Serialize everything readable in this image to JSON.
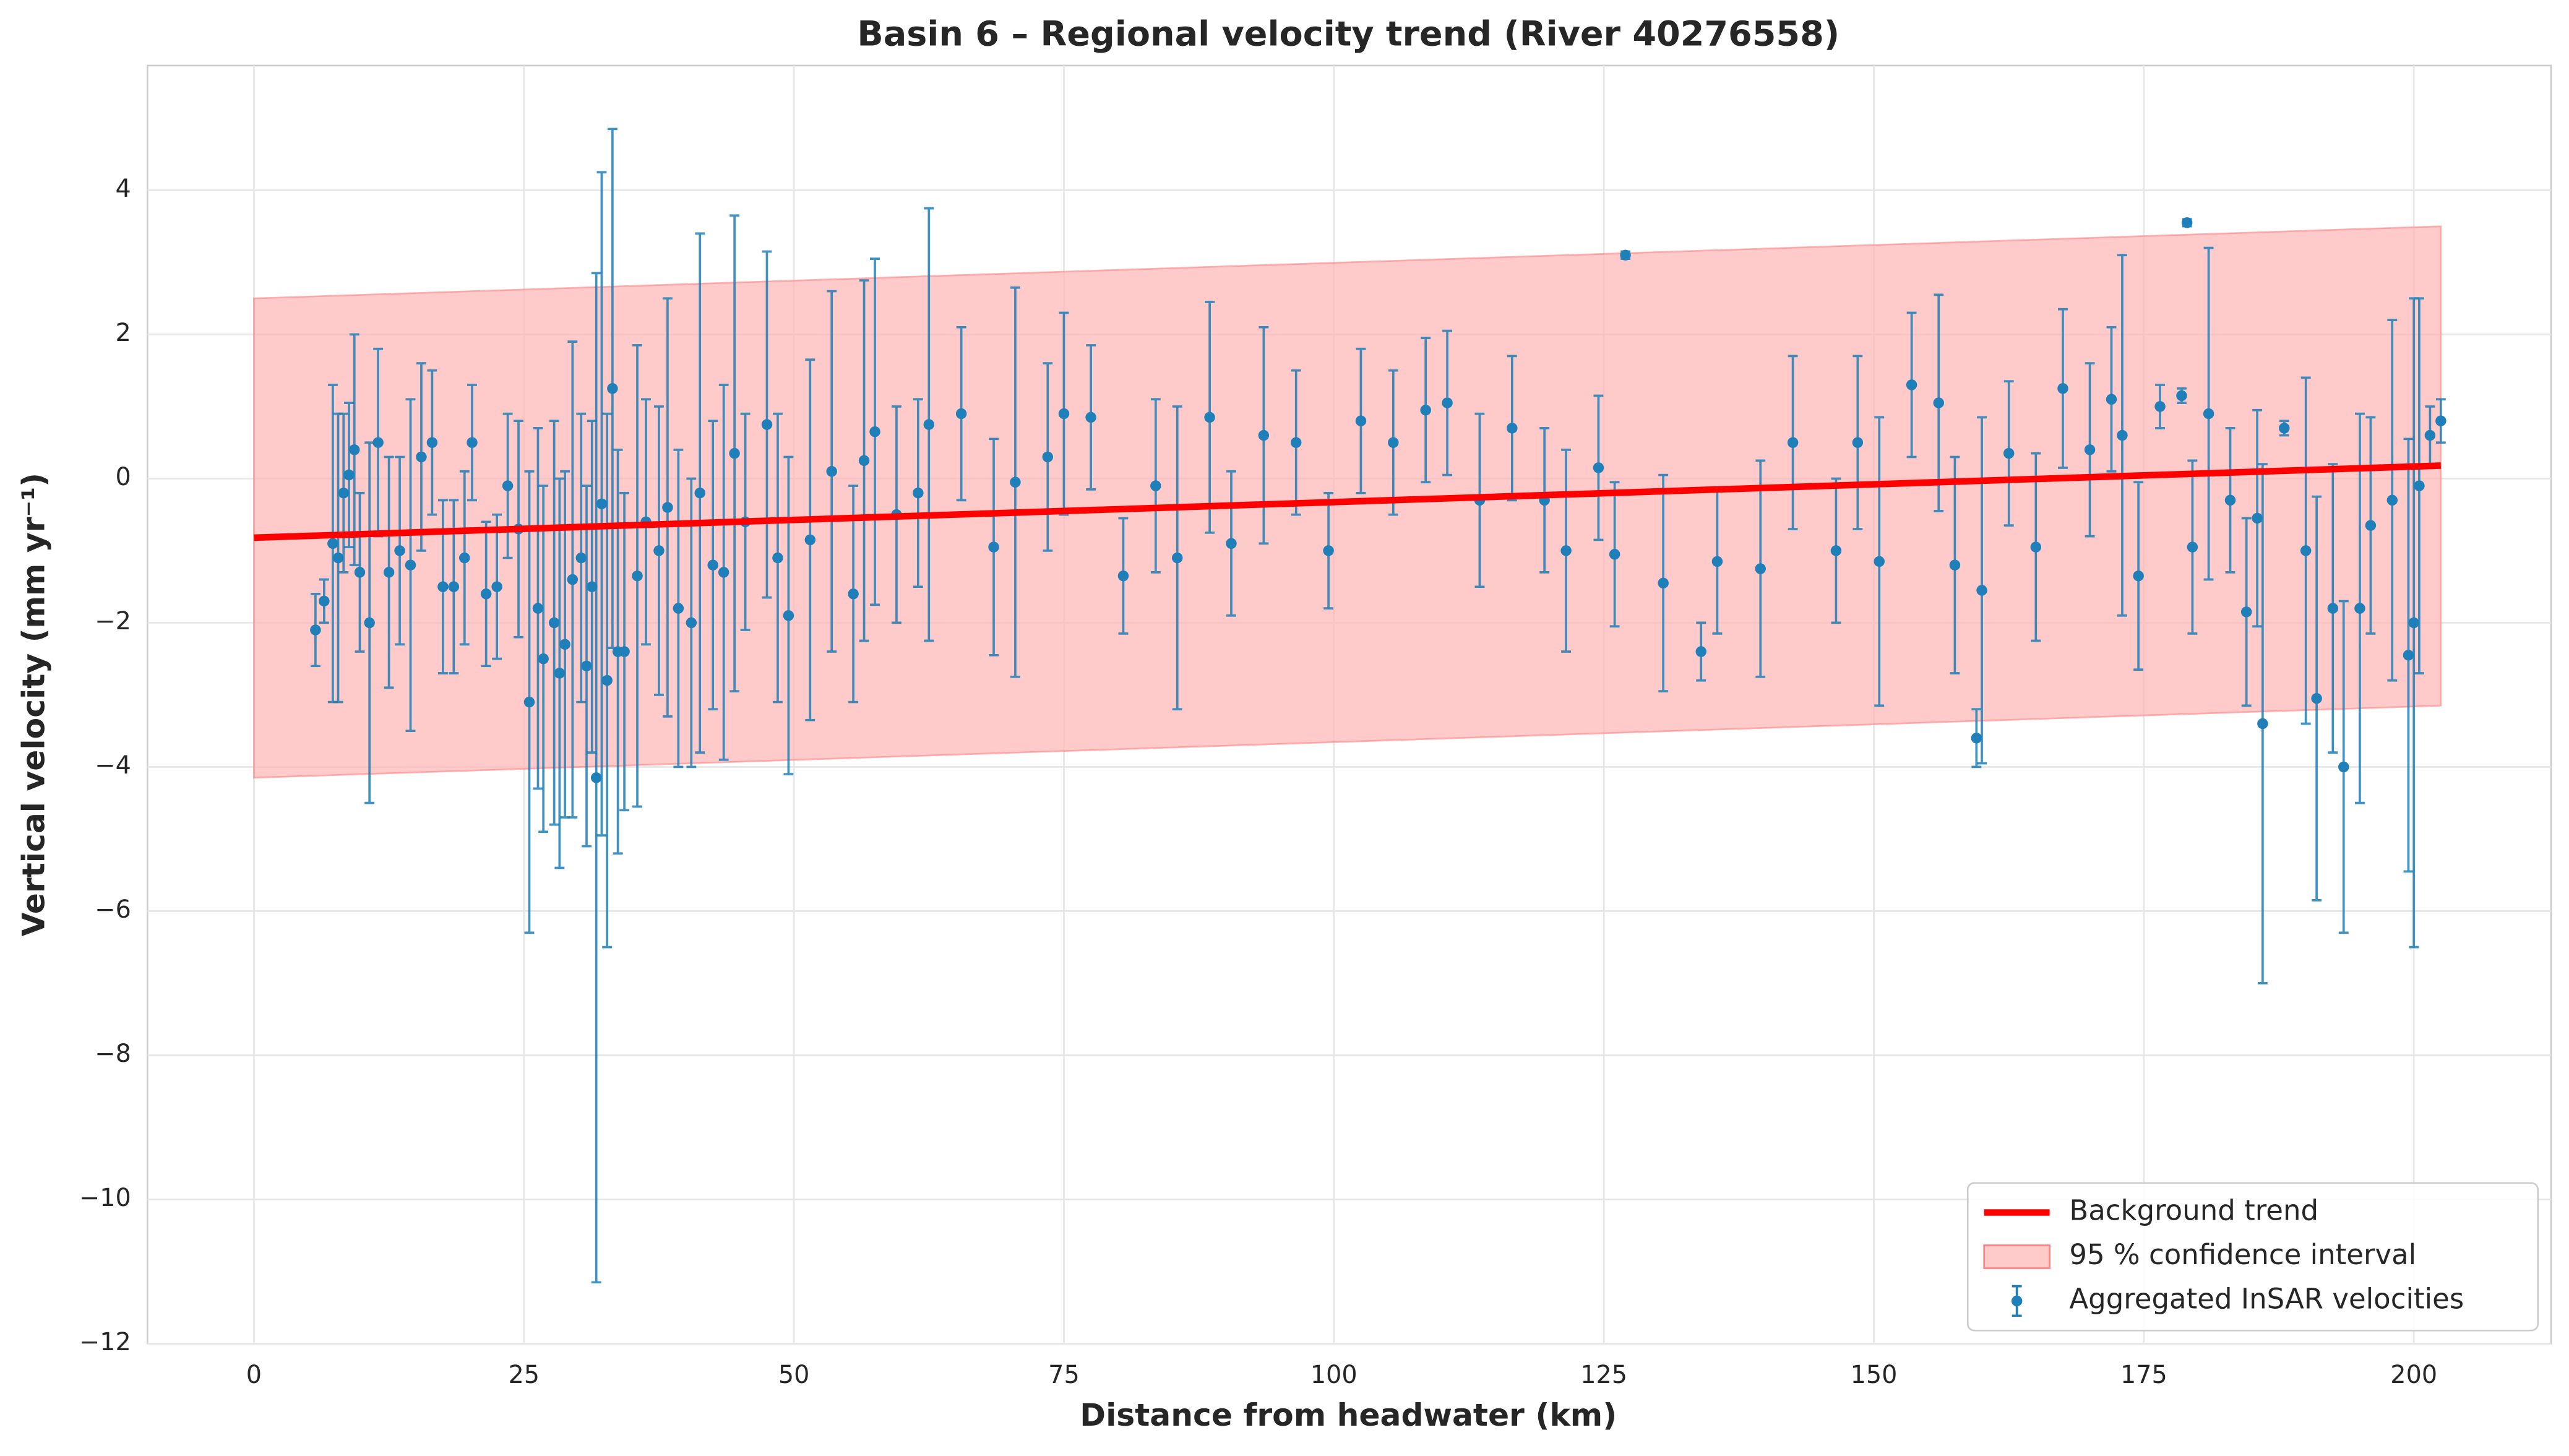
{
  "chart_data": {
    "type": "errorbar",
    "title": "Basin 6 – Regional velocity trend (River 40276558)",
    "x_label": "Distance from headwater (km)",
    "y_label": "Vertical velocity (mm yr⁻¹)",
    "xlim": [
      -9.86,
      212.7
    ],
    "ylim": [
      -12,
      5.73
    ],
    "xticks": [
      0,
      25,
      50,
      75,
      100,
      125,
      150,
      175,
      200
    ],
    "yticks": [
      {
        "value": -12,
        "label": "−12"
      },
      {
        "value": -10,
        "label": "−10"
      },
      {
        "value": -8,
        "label": "−8"
      },
      {
        "value": -6,
        "label": "−6"
      },
      {
        "value": -4,
        "label": "−4"
      },
      {
        "value": -2,
        "label": "−2"
      },
      0,
      2,
      4
    ],
    "grid": true,
    "legend_position": "lower right",
    "trend": {
      "name": "Background trend",
      "color": "#ff0000",
      "x": [
        0,
        202.5
      ],
      "values": [
        -0.82,
        0.18
      ]
    },
    "band": {
      "name": "95 % confidence interval",
      "color": "#ffb3b3",
      "x": [
        0,
        202.5
      ],
      "lower": [
        -4.15,
        -3.15
      ],
      "upper": [
        2.5,
        3.5
      ]
    },
    "series": [
      {
        "name": "Aggregated InSAR velocities",
        "color": "#1f7fb8",
        "x": [
          5.7,
          6.5,
          7.3,
          7.8,
          8.3,
          8.8,
          9.3,
          9.8,
          10.7,
          11.5,
          12.5,
          13.5,
          14.5,
          15.5,
          16.5,
          17.5,
          18.5,
          19.5,
          20.2,
          21.5,
          22.5,
          23.5,
          24.5,
          25.5,
          26.3,
          26.8,
          27.8,
          28.3,
          28.8,
          29.5,
          30.3,
          30.8,
          31.3,
          31.7,
          32.2,
          32.7,
          33.2,
          33.7,
          34.3,
          35.5,
          36.3,
          37.5,
          38.3,
          39.3,
          40.5,
          41.3,
          42.5,
          43.5,
          44.5,
          45.5,
          47.5,
          48.5,
          49.5,
          51.5,
          53.5,
          55.5,
          56.5,
          57.5,
          59.5,
          61.5,
          62.5,
          65.5,
          68.5,
          70.5,
          73.5,
          75.0,
          77.5,
          80.5,
          83.5,
          85.5,
          88.5,
          90.5,
          93.5,
          96.5,
          99.5,
          102.5,
          105.5,
          108.5,
          110.5,
          113.5,
          116.5,
          119.5,
          121.5,
          124.5,
          126.0,
          127.0,
          130.5,
          134.0,
          135.5,
          139.5,
          142.5,
          146.5,
          148.5,
          150.5,
          153.5,
          156.0,
          157.5,
          159.5,
          160.0,
          162.5,
          165.0,
          167.5,
          170.0,
          172.0,
          173.0,
          174.5,
          176.5,
          178.5,
          179.0,
          179.5,
          181.0,
          183.0,
          184.5,
          185.5,
          186.0,
          188.0,
          190.0,
          191.0,
          192.5,
          193.5,
          195.0,
          196.0,
          198.0,
          199.5,
          200.0,
          200.5,
          201.5,
          202.5
        ],
        "values": [
          -2.1,
          -1.7,
          -0.9,
          -1.1,
          -0.2,
          0.05,
          0.4,
          -1.3,
          -2.0,
          0.5,
          -1.3,
          -1.0,
          -1.2,
          0.3,
          0.5,
          -1.5,
          -1.5,
          -1.1,
          0.5,
          -1.6,
          -1.5,
          -0.1,
          -0.7,
          -3.1,
          -1.8,
          -2.5,
          -2.0,
          -2.7,
          -2.3,
          -1.4,
          -1.1,
          -2.6,
          -1.5,
          -4.15,
          -0.35,
          -2.8,
          1.25,
          -2.4,
          -2.4,
          -1.35,
          -0.6,
          -1.0,
          -0.4,
          -1.8,
          -2.0,
          -0.2,
          -1.2,
          -1.3,
          0.35,
          -0.6,
          0.75,
          -1.1,
          -1.9,
          -0.85,
          0.1,
          -1.6,
          0.25,
          0.65,
          -0.5,
          -0.2,
          0.75,
          0.9,
          -0.95,
          -0.05,
          0.3,
          0.9,
          0.85,
          -1.35,
          -0.1,
          -1.1,
          0.85,
          -0.9,
          0.6,
          0.5,
          -1.0,
          0.8,
          0.5,
          0.95,
          1.05,
          -0.3,
          0.7,
          -0.3,
          -1.0,
          0.15,
          -1.05,
          3.1,
          -1.45,
          -2.4,
          -1.15,
          -1.25,
          0.5,
          -1.0,
          0.5,
          -1.15,
          1.3,
          1.05,
          -1.2,
          -3.6,
          -1.55,
          0.35,
          -0.95,
          1.25,
          0.4,
          1.1,
          0.6,
          -1.35,
          1.0,
          1.15,
          3.55,
          -0.95,
          0.9,
          -0.3,
          -1.85,
          -0.55,
          -3.4,
          0.7,
          -1.0,
          -3.05,
          -1.8,
          -4.0,
          -1.8,
          -0.65,
          -0.3,
          -2.45,
          -2.0,
          -0.1,
          0.6,
          0.8
        ],
        "errors": [
          0.5,
          0.3,
          2.2,
          2.0,
          1.1,
          1.0,
          1.6,
          1.1,
          2.5,
          1.3,
          1.6,
          1.3,
          2.3,
          1.3,
          1.0,
          1.2,
          1.2,
          1.2,
          0.8,
          1.0,
          1.0,
          1.0,
          1.5,
          3.2,
          2.5,
          2.4,
          2.8,
          2.7,
          2.4,
          3.3,
          2.0,
          2.5,
          2.3,
          7.0,
          4.6,
          3.7,
          3.6,
          2.8,
          2.2,
          3.2,
          1.7,
          2.0,
          2.9,
          2.2,
          2.0,
          3.6,
          2.0,
          2.6,
          3.3,
          1.5,
          2.4,
          2.0,
          2.2,
          2.5,
          2.5,
          1.5,
          2.5,
          2.4,
          1.5,
          1.3,
          3.0,
          1.2,
          1.5,
          2.7,
          1.3,
          1.4,
          1.0,
          0.8,
          1.2,
          2.1,
          1.6,
          1.0,
          1.5,
          1.0,
          0.8,
          1.0,
          1.0,
          1.0,
          1.0,
          1.2,
          1.0,
          1.0,
          1.4,
          1.0,
          1.0,
          0.05,
          1.5,
          0.4,
          1.0,
          1.5,
          1.2,
          1.0,
          1.2,
          2.0,
          1.0,
          1.5,
          1.5,
          0.4,
          2.4,
          1.0,
          1.3,
          1.1,
          1.2,
          1.0,
          2.5,
          1.3,
          0.3,
          0.1,
          0.05,
          1.2,
          2.3,
          1.0,
          1.3,
          1.5,
          3.6,
          0.1,
          2.4,
          2.8,
          2.0,
          2.3,
          2.7,
          1.5,
          2.5,
          3.0,
          4.5,
          2.6,
          0.4,
          0.3
        ]
      }
    ]
  }
}
